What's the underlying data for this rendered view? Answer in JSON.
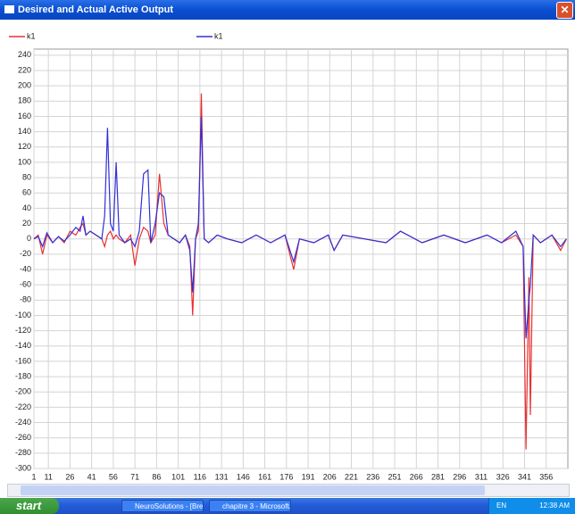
{
  "window": {
    "title": "Desired and Actual Active Output"
  },
  "chart_data": {
    "type": "line",
    "x": [
      1,
      4,
      7,
      10,
      14,
      18,
      22,
      26,
      30,
      33,
      35,
      37,
      40,
      44,
      48,
      50,
      52,
      54,
      56,
      58,
      60,
      64,
      68,
      71,
      74,
      77,
      80,
      82,
      85,
      88,
      91,
      94,
      98,
      102,
      106,
      109,
      111,
      113,
      115,
      117,
      119,
      122,
      128,
      135,
      145,
      155,
      165,
      175,
      181,
      185,
      195,
      205,
      209,
      215,
      230,
      245,
      255,
      270,
      285,
      300,
      315,
      325,
      335,
      340,
      342,
      344,
      345,
      347,
      352,
      360,
      366,
      370
    ],
    "series": [
      {
        "name": "k1",
        "color": "#e83030",
        "values": [
          0,
          5,
          -20,
          5,
          -5,
          3,
          -5,
          10,
          5,
          15,
          20,
          5,
          10,
          5,
          0,
          -10,
          5,
          10,
          0,
          5,
          0,
          -5,
          5,
          -35,
          0,
          15,
          10,
          -5,
          5,
          85,
          20,
          5,
          0,
          -5,
          5,
          -10,
          -100,
          0,
          10,
          190,
          0,
          -5,
          5,
          0,
          -5,
          5,
          -5,
          5,
          -40,
          0,
          -5,
          5,
          -15,
          5,
          0,
          -5,
          10,
          -5,
          5,
          -5,
          5,
          -5,
          5,
          -10,
          -275,
          -50,
          -230,
          5,
          -5,
          5,
          -15,
          0
        ]
      },
      {
        "name": "k1",
        "color": "#3030d8",
        "values": [
          0,
          3,
          -10,
          8,
          -5,
          3,
          -3,
          5,
          15,
          10,
          30,
          5,
          10,
          5,
          0,
          30,
          145,
          20,
          10,
          100,
          5,
          -5,
          0,
          -10,
          10,
          85,
          90,
          -5,
          20,
          60,
          55,
          5,
          0,
          -5,
          5,
          -15,
          -70,
          0,
          20,
          160,
          0,
          -5,
          5,
          0,
          -5,
          5,
          -5,
          5,
          -30,
          0,
          -5,
          5,
          -15,
          5,
          0,
          -5,
          10,
          -5,
          5,
          -5,
          5,
          -5,
          10,
          -10,
          -130,
          -80,
          -60,
          5,
          -5,
          5,
          -10,
          0
        ]
      }
    ],
    "xlim": [
      1,
      371
    ],
    "xticks": [
      1,
      11,
      26,
      41,
      56,
      71,
      86,
      101,
      116,
      131,
      146,
      161,
      176,
      191,
      206,
      221,
      236,
      251,
      266,
      281,
      296,
      311,
      326,
      341,
      356
    ],
    "ylim": [
      -300,
      248
    ],
    "yticks": [
      -300,
      -280,
      -260,
      -240,
      -220,
      -200,
      -180,
      -160,
      -140,
      -120,
      -100,
      -80,
      -60,
      -40,
      -20,
      0,
      20,
      40,
      60,
      80,
      100,
      120,
      140,
      160,
      180,
      200,
      220,
      240
    ],
    "grid": true
  },
  "taskbar": {
    "start": "start",
    "items": [
      "NeuroSolutions - [Bre...",
      "chapitre 3 - Microsoft..."
    ],
    "language": "EN",
    "clock": "12:38 AM"
  }
}
